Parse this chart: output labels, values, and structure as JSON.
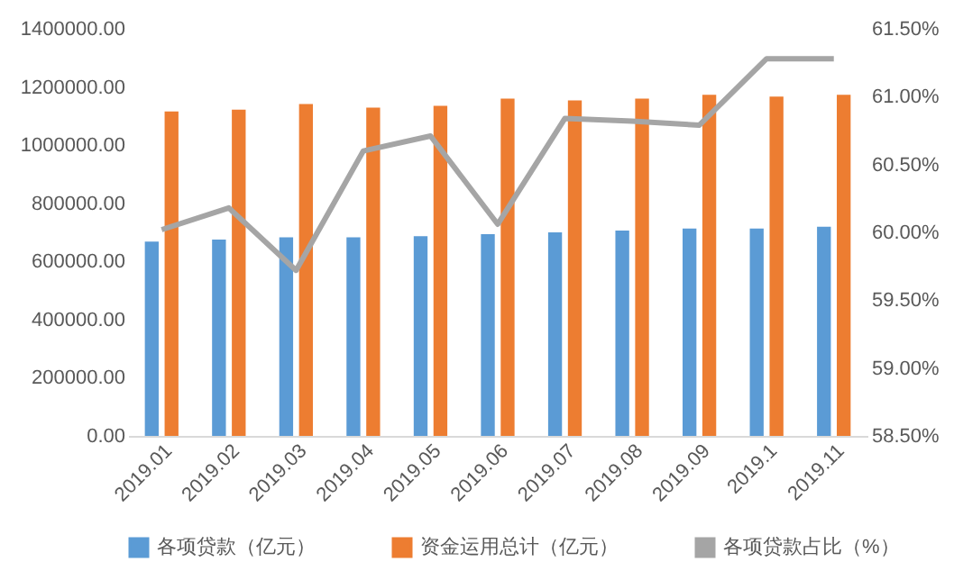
{
  "chart_data": {
    "type": "bar",
    "categories": [
      "2019.01",
      "2019.02",
      "2019.03",
      "2019.04",
      "2019.05",
      "2019.06",
      "2019.07",
      "2019.08",
      "2019.09",
      "2019.1",
      "2019.11"
    ],
    "series": [
      {
        "name": "各项贷款（亿元）",
        "color": "#5b9bd5",
        "values": [
          668000,
          675000,
          683000,
          683000,
          687000,
          694000,
          700000,
          706000,
          713000,
          713000,
          719000
        ]
      },
      {
        "name": "资金运用总计（亿元）",
        "color": "#ed7d31",
        "values": [
          1116000,
          1122000,
          1141000,
          1129000,
          1135000,
          1160000,
          1154000,
          1160000,
          1173000,
          1167000,
          1173000
        ]
      },
      {
        "name": "各项贷款占比（%）",
        "color": "#a5a5a5",
        "type": "line",
        "axis": "y2",
        "values": [
          60.02,
          60.18,
          59.72,
          60.6,
          60.71,
          60.06,
          60.84,
          60.82,
          60.79,
          61.28,
          61.28
        ]
      }
    ],
    "ylim": [
      0,
      1400000
    ],
    "yticks": [
      {
        "value": 0,
        "label": "0.00"
      },
      {
        "value": 200000,
        "label": "200000.00"
      },
      {
        "value": 400000,
        "label": "400000.00"
      },
      {
        "value": 600000,
        "label": "600000.00"
      },
      {
        "value": 800000,
        "label": "800000.00"
      },
      {
        "value": 1000000,
        "label": "1000000.00"
      },
      {
        "value": 1200000,
        "label": "1200000.00"
      },
      {
        "value": 1400000,
        "label": "1400000.00"
      }
    ],
    "y2lim": [
      58.5,
      61.5
    ],
    "y2ticks": [
      {
        "value": 58.5,
        "label": "58.50%"
      },
      {
        "value": 59,
        "label": "59.00%"
      },
      {
        "value": 59.5,
        "label": "59.50%"
      },
      {
        "value": 60,
        "label": "60.00%"
      },
      {
        "value": 60.5,
        "label": "60.50%"
      },
      {
        "value": 61,
        "label": "61.00%"
      },
      {
        "value": 61.5,
        "label": "61.50%"
      }
    ],
    "grid": false,
    "legend": "bottom",
    "marker": "none"
  }
}
